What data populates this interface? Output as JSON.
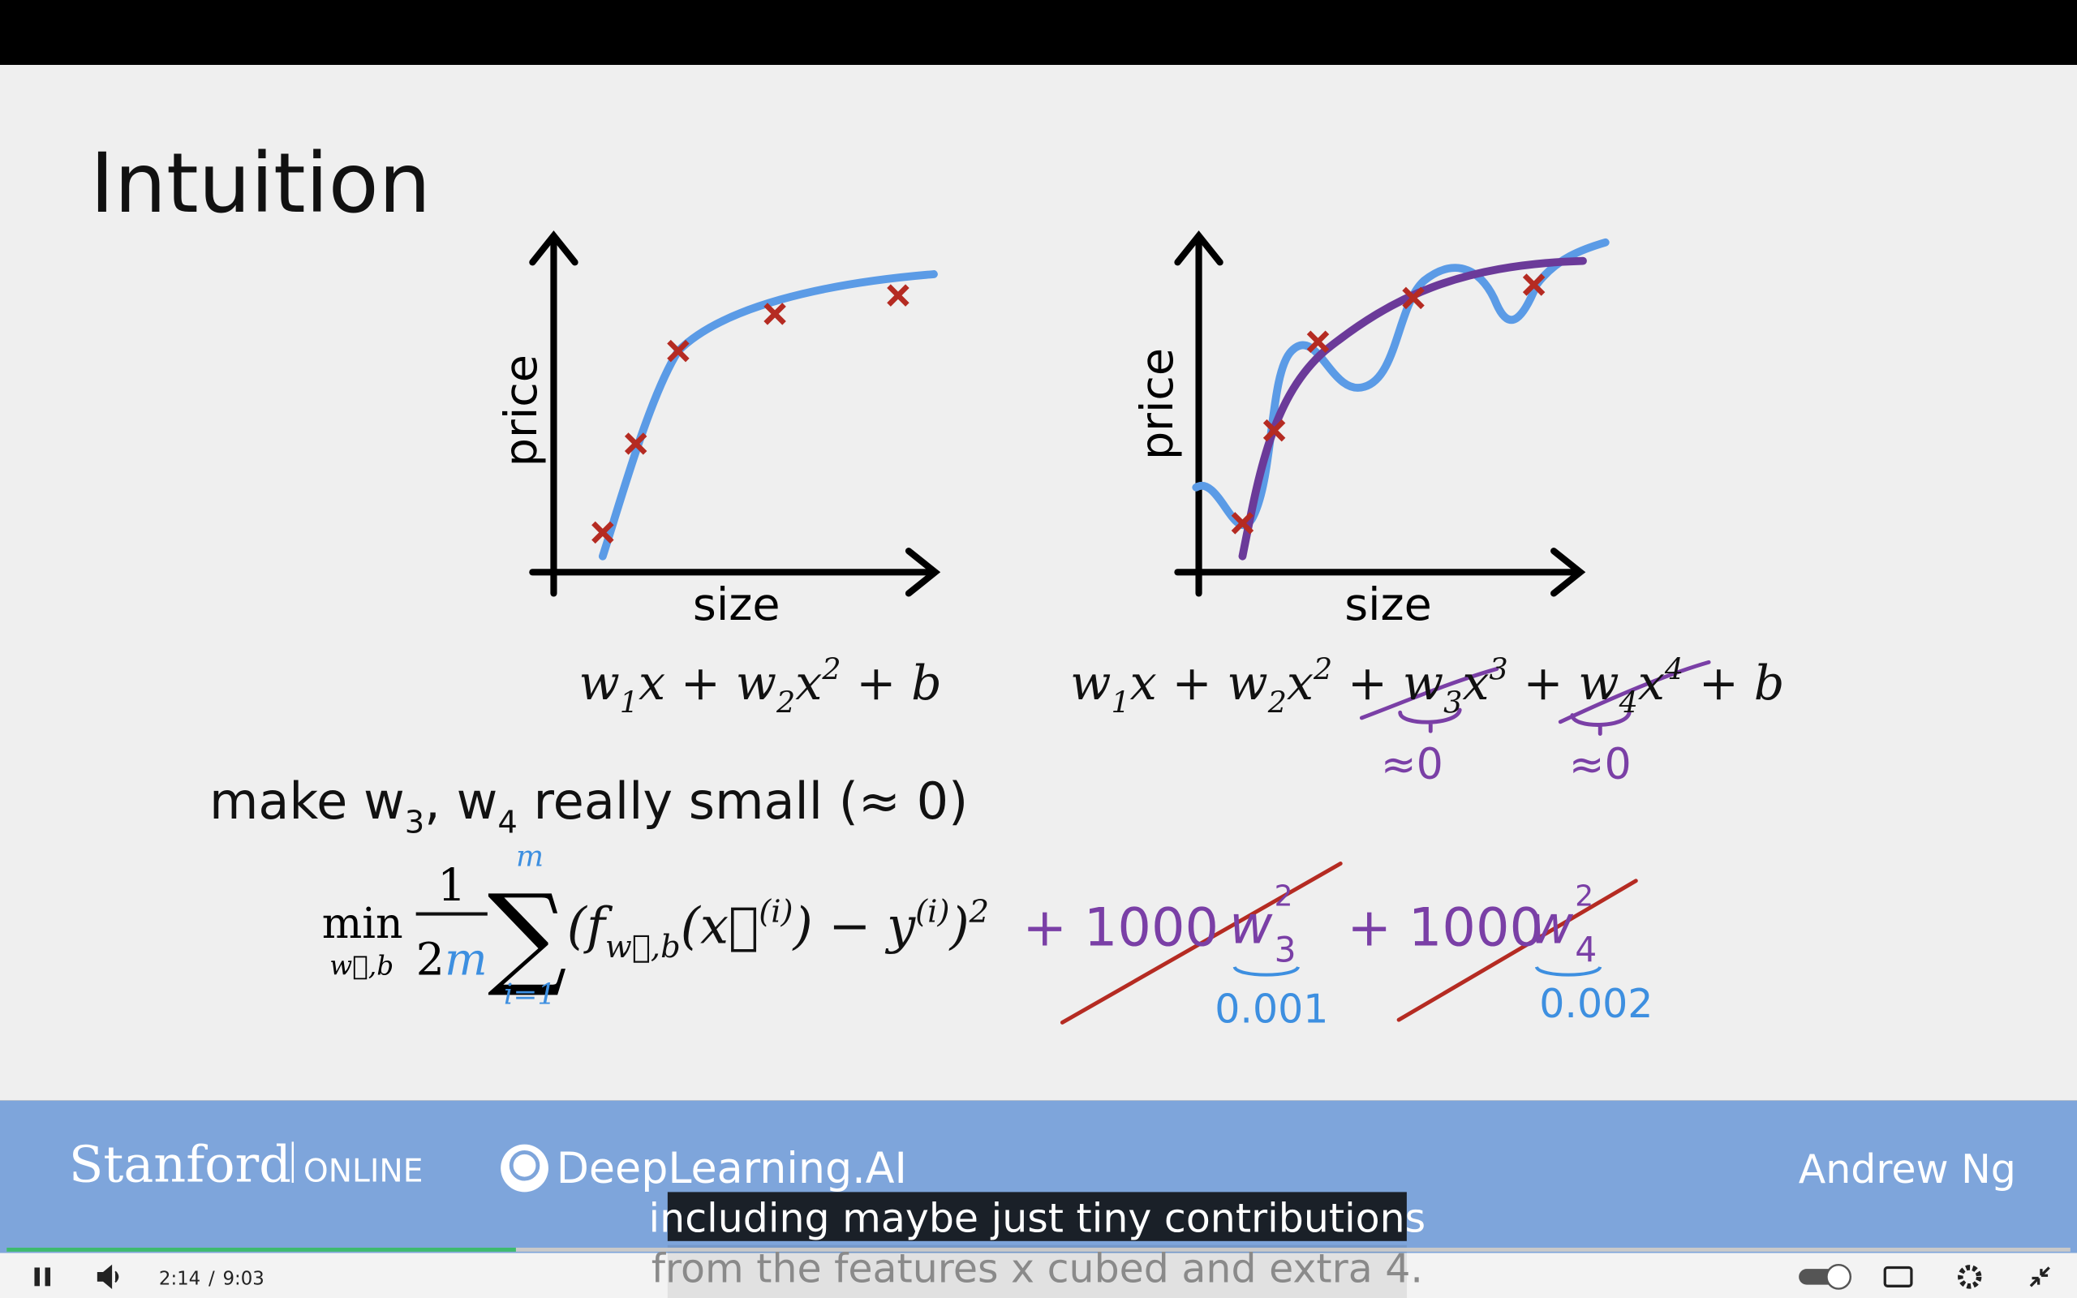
{
  "slide": {
    "title": "Intuition",
    "graph_left": {
      "y_label": "price",
      "x_label": "size"
    },
    "graph_right": {
      "y_label": "price",
      "x_label": "size"
    },
    "formula_left": [
      "w",
      "1",
      "x + w",
      "2",
      "x",
      "2",
      " + b"
    ],
    "formula_right": [
      "w",
      "1",
      "x + w",
      "2",
      "x",
      "2",
      " + w",
      "3",
      "x",
      "3",
      " + w",
      "4",
      "x",
      "4",
      " + b"
    ],
    "approx_zero": [
      "≈0",
      "≈0"
    ],
    "instruction": [
      "make ",
      "w",
      "3",
      ", ",
      "w",
      "4",
      " really small (≈ 0)"
    ],
    "cost": {
      "min": "min",
      "min_sub": "w⃗,b",
      "numerator": "1",
      "denominator": [
        "2",
        "m"
      ],
      "sum": "∑",
      "sum_top": "m",
      "sum_bottom": "i=1",
      "body": [
        "(f",
        "w⃗,b",
        "(x⃗",
        "(i)",
        ") − y",
        "(i)",
        ")",
        "2"
      ]
    },
    "penalties": [
      {
        "term": "+ 1000",
        "w": "w",
        "sub": "3",
        "sup": "2",
        "estimate": "0.001"
      },
      {
        "term": "+ 1000",
        "w": "w",
        "sub": "4",
        "sup": "2",
        "estimate": "0.002"
      }
    ]
  },
  "footer": {
    "stanford": "Stanford",
    "online": "ONLINE",
    "brand": "DeepLearning.AI",
    "presenter": "Andrew Ng"
  },
  "captions": [
    "including maybe just tiny contributions",
    "from the features x cubed and extra 4."
  ],
  "player": {
    "current_time": "2:14",
    "separator": "/",
    "duration": "9:03"
  }
}
